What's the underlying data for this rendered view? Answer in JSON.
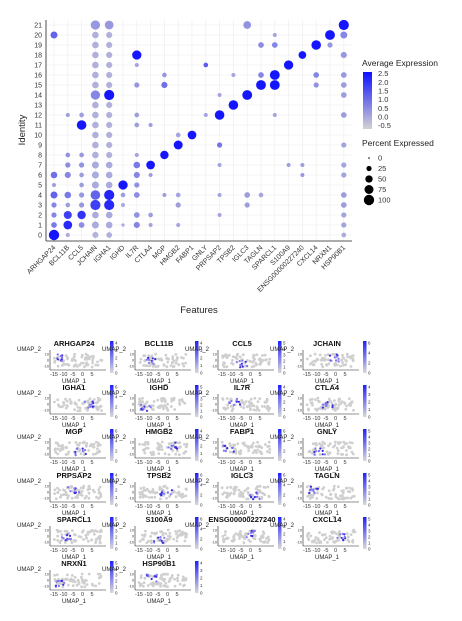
{
  "chart_data": [
    {
      "type": "dotplot",
      "xlabel": "Features",
      "ylabel": "Identity",
      "features": [
        "ARHGAP24",
        "BCL11B",
        "CCL5",
        "JCHAIN",
        "IGHA1",
        "IGHD",
        "IL7R",
        "CTLA4",
        "MGP",
        "HMGB2",
        "FABP1",
        "GNLY",
        "PRPSAP2",
        "TPSB2",
        "IGLC3",
        "TAGLN",
        "SPARCL1",
        "S100A9",
        "ENSG00000227240",
        "CXCL14",
        "NRXN1",
        "HSP90B1"
      ],
      "identities": [
        "0",
        "1",
        "2",
        "3",
        "4",
        "5",
        "6",
        "7",
        "8",
        "9",
        "10",
        "11",
        "12",
        "13",
        "14",
        "15",
        "16",
        "17",
        "18",
        "19",
        "20",
        "21"
      ],
      "legend_color": {
        "title": "Average Expression",
        "ticks": [
          "2.5",
          "2.0",
          "1.5",
          "1.0",
          "0.5",
          "0.0",
          "-0.5"
        ],
        "range": [
          -0.7,
          2.6
        ],
        "low": "#d3d3d3",
        "high": "#1010ff"
      },
      "legend_size": {
        "title": "Percent Expressed",
        "ticks": [
          "0",
          "25",
          "50",
          "75",
          "100"
        ]
      },
      "dots": [
        [
          0,
          0,
          100,
          2.5
        ],
        [
          0,
          4,
          45,
          1.2
        ],
        [
          0,
          6,
          40,
          1.0
        ],
        [
          0,
          1,
          30,
          0.8
        ],
        [
          0,
          20,
          45,
          1.2
        ],
        [
          0,
          3,
          25,
          0.6
        ],
        [
          0,
          2,
          25,
          0.6
        ],
        [
          0,
          5,
          15,
          0.2
        ],
        [
          1,
          1,
          70,
          2.2
        ],
        [
          1,
          2,
          60,
          1.8
        ],
        [
          1,
          4,
          40,
          0.8
        ],
        [
          1,
          6,
          35,
          0.6
        ],
        [
          1,
          0,
          15,
          0.0
        ],
        [
          1,
          3,
          20,
          0.2
        ],
        [
          1,
          7,
          25,
          0.5
        ],
        [
          1,
          8,
          20,
          0.4
        ],
        [
          1,
          12,
          15,
          0.2
        ],
        [
          2,
          2,
          65,
          2.0
        ],
        [
          2,
          11,
          85,
          2.5
        ],
        [
          2,
          1,
          30,
          0.5
        ],
        [
          2,
          3,
          25,
          0.3
        ],
        [
          2,
          4,
          25,
          0.3
        ],
        [
          2,
          5,
          20,
          0.2
        ],
        [
          2,
          6,
          20,
          0.2
        ],
        [
          2,
          7,
          25,
          0.4
        ],
        [
          2,
          8,
          20,
          0.3
        ],
        [
          2,
          12,
          20,
          0.2
        ],
        [
          3,
          21,
          80,
          0.3
        ],
        [
          3,
          14,
          80,
          0.6
        ],
        [
          3,
          3,
          95,
          1.8
        ],
        [
          3,
          4,
          85,
          1.2
        ],
        [
          3,
          0,
          35,
          -0.2
        ],
        [
          3,
          1,
          45,
          0.0
        ],
        [
          3,
          2,
          40,
          0.0
        ],
        [
          3,
          5,
          45,
          0.0
        ],
        [
          3,
          6,
          45,
          0.0
        ],
        [
          3,
          7,
          45,
          0.0
        ],
        [
          3,
          8,
          40,
          -0.1
        ],
        [
          3,
          9,
          40,
          -0.1
        ],
        [
          3,
          10,
          40,
          -0.1
        ],
        [
          3,
          11,
          40,
          -0.1
        ],
        [
          3,
          12,
          40,
          -0.1
        ],
        [
          3,
          13,
          40,
          -0.1
        ],
        [
          3,
          15,
          40,
          -0.1
        ],
        [
          3,
          16,
          40,
          -0.1
        ],
        [
          3,
          17,
          40,
          -0.1
        ],
        [
          3,
          18,
          40,
          -0.1
        ],
        [
          3,
          19,
          40,
          -0.1
        ],
        [
          3,
          20,
          40,
          -0.1
        ],
        [
          4,
          21,
          70,
          0.3
        ],
        [
          4,
          14,
          95,
          2.5
        ],
        [
          4,
          4,
          95,
          2.3
        ],
        [
          4,
          3,
          95,
          2.2
        ],
        [
          4,
          0,
          30,
          -0.1
        ],
        [
          4,
          1,
          40,
          0.0
        ],
        [
          4,
          2,
          40,
          0.0
        ],
        [
          4,
          5,
          40,
          0.0
        ],
        [
          4,
          6,
          40,
          0.0
        ],
        [
          4,
          7,
          40,
          0.0
        ],
        [
          4,
          8,
          35,
          -0.1
        ],
        [
          4,
          9,
          35,
          -0.1
        ],
        [
          4,
          10,
          35,
          -0.1
        ],
        [
          4,
          11,
          35,
          -0.1
        ],
        [
          4,
          12,
          35,
          -0.1
        ],
        [
          4,
          13,
          35,
          -0.1
        ],
        [
          4,
          15,
          35,
          -0.1
        ],
        [
          4,
          16,
          35,
          -0.1
        ],
        [
          4,
          17,
          35,
          -0.1
        ],
        [
          4,
          18,
          35,
          -0.1
        ],
        [
          4,
          19,
          35,
          -0.1
        ],
        [
          4,
          20,
          35,
          -0.1
        ],
        [
          5,
          5,
          80,
          2.5
        ],
        [
          5,
          4,
          20,
          0.2
        ],
        [
          5,
          3,
          15,
          0.0
        ],
        [
          5,
          1,
          10,
          0.0
        ],
        [
          6,
          18,
          80,
          2.5
        ],
        [
          6,
          1,
          35,
          0.6
        ],
        [
          6,
          2,
          30,
          0.4
        ],
        [
          6,
          4,
          30,
          0.5
        ],
        [
          6,
          5,
          25,
          0.4
        ],
        [
          6,
          6,
          35,
          0.6
        ],
        [
          6,
          7,
          40,
          0.8
        ],
        [
          6,
          12,
          20,
          0.2
        ],
        [
          6,
          11,
          20,
          0.2
        ],
        [
          6,
          15,
          25,
          0.3
        ],
        [
          6,
          17,
          15,
          0.1
        ],
        [
          6,
          8,
          15,
          0.1
        ],
        [
          7,
          7,
          70,
          2.5
        ],
        [
          7,
          2,
          20,
          0.2
        ],
        [
          7,
          1,
          15,
          0.1
        ],
        [
          7,
          6,
          15,
          0.2
        ],
        [
          7,
          11,
          15,
          0.2
        ],
        [
          8,
          8,
          65,
          2.5
        ],
        [
          8,
          15,
          35,
          1.0
        ],
        [
          8,
          16,
          20,
          0.3
        ],
        [
          8,
          4,
          15,
          0.2
        ],
        [
          9,
          9,
          75,
          2.5
        ],
        [
          9,
          3,
          25,
          0.2
        ],
        [
          9,
          4,
          20,
          0.1
        ],
        [
          9,
          10,
          20,
          0.1
        ],
        [
          9,
          1,
          15,
          0.1
        ],
        [
          10,
          10,
          70,
          2.5
        ],
        [
          11,
          17,
          20,
          1.3
        ],
        [
          11,
          12,
          15,
          0.1
        ],
        [
          12,
          12,
          85,
          2.5
        ],
        [
          12,
          9,
          25,
          0.9
        ],
        [
          12,
          7,
          15,
          0.1
        ],
        [
          12,
          4,
          15,
          0.1
        ],
        [
          12,
          2,
          15,
          0.1
        ],
        [
          12,
          14,
          15,
          0.1
        ],
        [
          13,
          13,
          85,
          2.5
        ],
        [
          13,
          16,
          15,
          0.1
        ],
        [
          14,
          14,
          90,
          2.5
        ],
        [
          14,
          21,
          55,
          0.4
        ],
        [
          14,
          4,
          30,
          0.2
        ],
        [
          14,
          3,
          25,
          0.2
        ],
        [
          15,
          15,
          90,
          2.5
        ],
        [
          15,
          16,
          30,
          0.6
        ],
        [
          15,
          19,
          30,
          0.5
        ],
        [
          15,
          4,
          20,
          0.1
        ],
        [
          16,
          15,
          90,
          2.5
        ],
        [
          16,
          16,
          90,
          2.5
        ],
        [
          16,
          19,
          30,
          0.6
        ],
        [
          16,
          12,
          15,
          0.1
        ],
        [
          16,
          20,
          15,
          0.1
        ],
        [
          17,
          17,
          80,
          2.5
        ],
        [
          17,
          7,
          15,
          0.2
        ],
        [
          18,
          18,
          55,
          2.5
        ],
        [
          18,
          6,
          15,
          0.3
        ],
        [
          18,
          7,
          15,
          0.2
        ],
        [
          19,
          19,
          85,
          2.5
        ],
        [
          19,
          16,
          30,
          0.6
        ],
        [
          19,
          15,
          25,
          0.4
        ],
        [
          20,
          20,
          90,
          2.5
        ],
        [
          20,
          19,
          25,
          0.3
        ],
        [
          21,
          21,
          95,
          2.5
        ],
        [
          21,
          20,
          45,
          0.6
        ],
        [
          21,
          16,
          30,
          0.3
        ],
        [
          21,
          15,
          30,
          0.2
        ],
        [
          21,
          12,
          30,
          0.2
        ],
        [
          21,
          4,
          30,
          0.2
        ],
        [
          21,
          3,
          30,
          0.2
        ],
        [
          21,
          18,
          35,
          0.3
        ],
        [
          21,
          14,
          30,
          0.2
        ],
        [
          21,
          9,
          25,
          0.1
        ],
        [
          21,
          7,
          25,
          0.1
        ],
        [
          21,
          6,
          25,
          0.1
        ],
        [
          21,
          2,
          25,
          0.1
        ],
        [
          21,
          1,
          25,
          0.1
        ],
        [
          21,
          0,
          20,
          0.0
        ]
      ]
    },
    {
      "type": "scatter",
      "layout": "feature-plot-grid",
      "xlabel": "UMAP_1",
      "ylabel": "UMAP_2",
      "xticks": [
        "-15",
        "-10",
        "-5",
        "0",
        "5"
      ],
      "yticks": [
        "10",
        "0",
        "-10"
      ],
      "panels": [
        {
          "gene": "ARHGAP24",
          "scale": [
            "4",
            "3",
            "2",
            "1",
            "0"
          ]
        },
        {
          "gene": "BCL11B",
          "scale": [
            "4",
            "3",
            "2",
            "1",
            "0"
          ]
        },
        {
          "gene": "CCL5",
          "scale": [
            "5",
            "4",
            "3",
            "2",
            "1",
            "0"
          ]
        },
        {
          "gene": "JCHAIN",
          "scale": [
            "6",
            "4",
            "2",
            "0"
          ]
        },
        {
          "gene": "IGHA1",
          "scale": [
            "6",
            "4",
            "2",
            "0"
          ]
        },
        {
          "gene": "IGHD",
          "scale": [
            "5",
            "4",
            "3",
            "2",
            "1",
            "0"
          ]
        },
        {
          "gene": "IL7R",
          "scale": [
            "4",
            "3",
            "2",
            "1",
            "0"
          ]
        },
        {
          "gene": "CTLA4",
          "scale": [
            "4",
            "3",
            "2",
            "1",
            "0"
          ]
        },
        {
          "gene": "MGP",
          "scale": [
            "6",
            "4",
            "2",
            "0"
          ]
        },
        {
          "gene": "HMGB2",
          "scale": [
            "4",
            "3",
            "2",
            "1",
            "0"
          ]
        },
        {
          "gene": "FABP1",
          "scale": [
            "6",
            "4",
            "2",
            "0"
          ]
        },
        {
          "gene": "GNLY",
          "scale": [
            "5",
            "4",
            "3",
            "2",
            "1",
            "0"
          ]
        },
        {
          "gene": "PRPSAP2",
          "scale": [
            "4",
            "3",
            "2",
            "1",
            "0"
          ]
        },
        {
          "gene": "TPSB2",
          "scale": [
            "6",
            "4",
            "2",
            "0"
          ]
        },
        {
          "gene": "IGLC3",
          "scale": [
            "6",
            "4",
            "2",
            "0"
          ]
        },
        {
          "gene": "TAGLN",
          "scale": [
            "5",
            "4",
            "3",
            "2",
            "1",
            "0"
          ]
        },
        {
          "gene": "SPARCL1",
          "scale": [
            "5",
            "4",
            "3",
            "2",
            "1",
            "0"
          ]
        },
        {
          "gene": "S100A9",
          "scale": [
            "6",
            "4",
            "2",
            "0"
          ]
        },
        {
          "gene": "ENSG00000227240",
          "scale": [
            "4",
            "3",
            "2",
            "1",
            "0"
          ]
        },
        {
          "gene": "CXCL14",
          "scale": [
            "5",
            "4",
            "3",
            "2",
            "1",
            "0"
          ]
        },
        {
          "gene": "NRXN1",
          "scale": [
            "5",
            "4",
            "3",
            "2",
            "1",
            "0"
          ]
        },
        {
          "gene": "HSP90B1",
          "scale": [
            "4",
            "3",
            "2",
            "1",
            "0"
          ]
        }
      ]
    }
  ]
}
